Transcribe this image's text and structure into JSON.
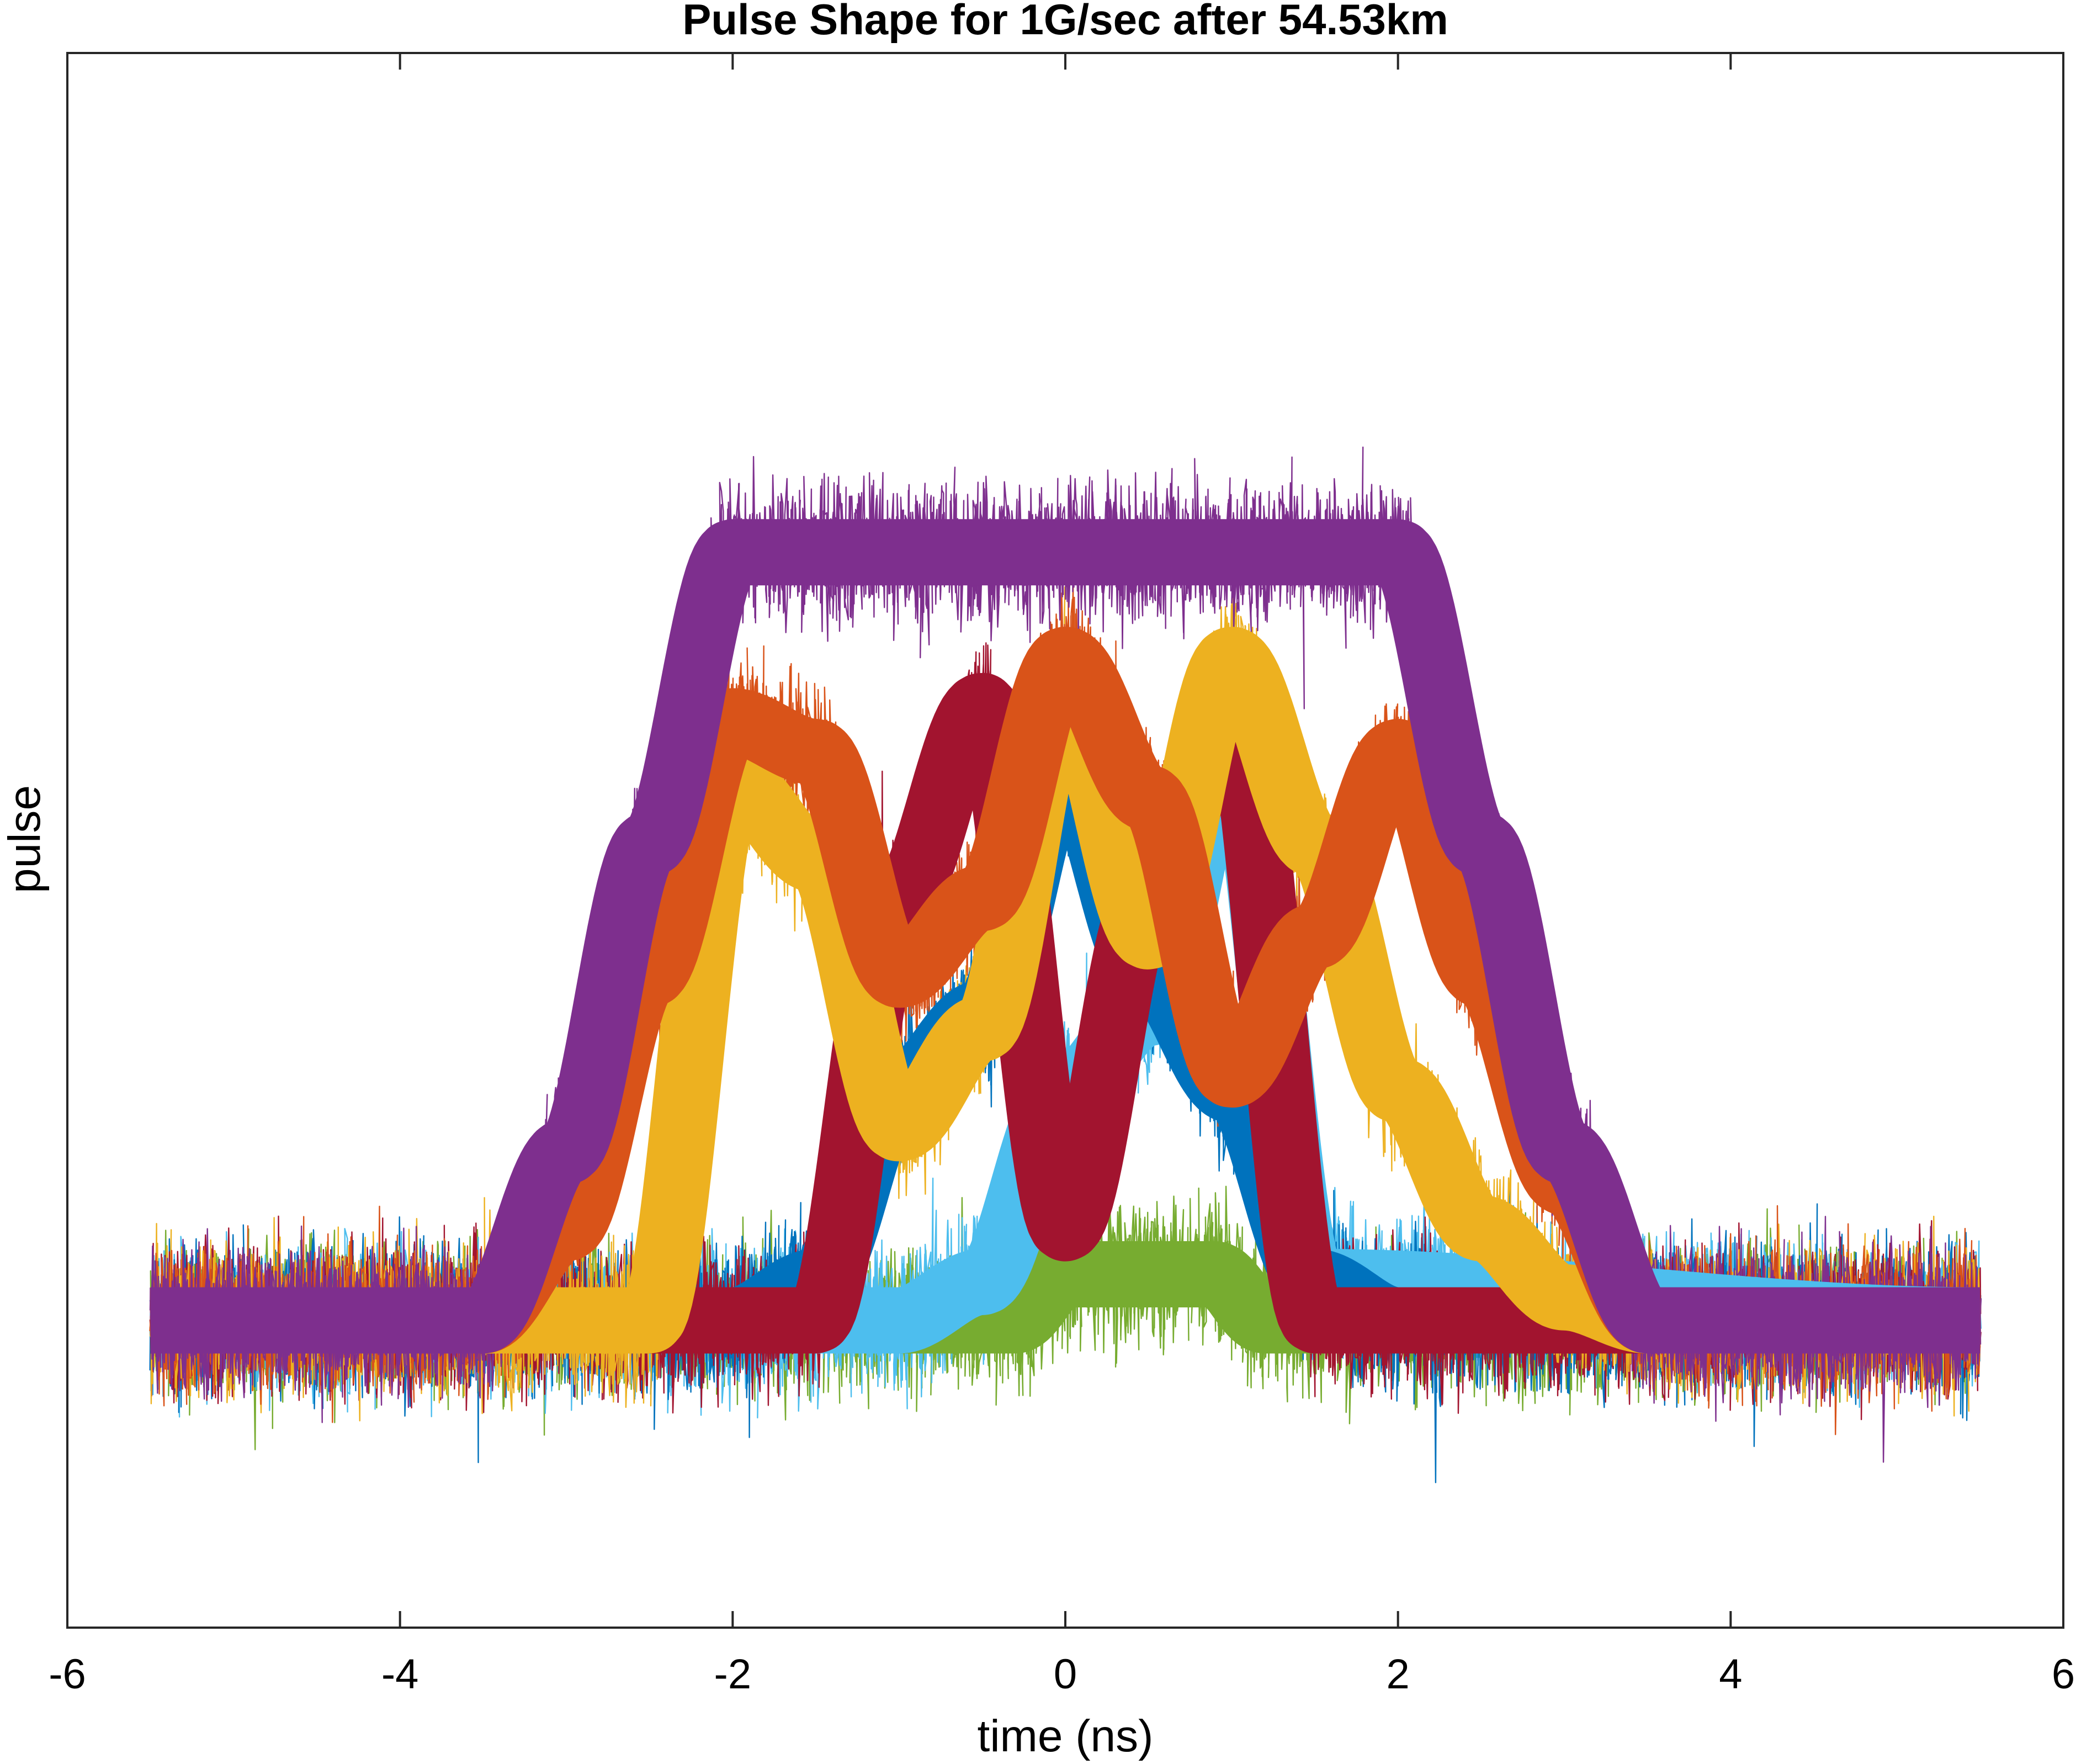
{
  "chart_data": {
    "type": "line",
    "title": "Pulse Shape for 1G/sec after 54.53km",
    "xlabel": "time (ns)",
    "ylabel": "pulse",
    "xlim": [
      -6,
      6
    ],
    "ylim": [
      -0.4,
      1.65
    ],
    "xticks": [
      -6,
      -4,
      -2,
      0,
      2,
      4,
      6
    ],
    "xtick_labels": [
      "-6",
      "-4",
      "-2",
      "0",
      "2",
      "4",
      "6"
    ],
    "yticks_shown": false,
    "grid": false,
    "legend": "none",
    "notes_visible": "noisy overlaid pulse traces (eye-pattern style), x sampled from -5.5 to 5.5 ns",
    "bit_period_ns": 1,
    "series": [
      {
        "color": "#7E2F8E",
        "x": [
          -5.5,
          -3.5,
          -3.0,
          -2.5,
          -2.0,
          2.0,
          2.5,
          3.0,
          3.5,
          5.5
        ],
        "y": [
          0.0,
          0.0,
          0.22,
          0.62,
          1.0,
          1.0,
          0.62,
          0.22,
          0.0,
          0.0
        ]
      },
      {
        "color": "#D95319",
        "x": [
          -5.5,
          -3.5,
          -3.0,
          -2.5,
          -2.0,
          -1.5,
          -1.0,
          -0.5,
          0.0,
          0.5,
          1.0,
          1.5,
          2.0,
          2.5,
          3.0,
          3.5,
          5.5
        ],
        "y": [
          0.0,
          0.0,
          0.12,
          0.45,
          0.78,
          0.74,
          0.45,
          0.55,
          0.86,
          0.68,
          0.32,
          0.5,
          0.74,
          0.45,
          0.18,
          0.0,
          0.0
        ]
      },
      {
        "color": "#EDB120",
        "x": [
          -5.5,
          -2.5,
          -2.0,
          -1.5,
          -1.0,
          -0.5,
          0.0,
          0.5,
          1.0,
          1.5,
          2.0,
          2.5,
          3.0,
          3.5,
          5.5
        ],
        "y": [
          0.0,
          0.0,
          0.7,
          0.6,
          0.25,
          0.38,
          0.82,
          0.5,
          0.86,
          0.62,
          0.3,
          0.12,
          0.03,
          0.0,
          0.0
        ]
      },
      {
        "color": "#A2142F",
        "x": [
          -5.5,
          -1.5,
          -1.0,
          -0.5,
          0.0,
          0.5,
          1.0,
          1.5,
          5.5
        ],
        "y": [
          0.0,
          0.0,
          0.55,
          0.8,
          0.12,
          0.55,
          0.8,
          0.0,
          0.0
        ]
      },
      {
        "color": "#0072BD",
        "x": [
          -5.5,
          -2.0,
          -1.5,
          -1.0,
          -0.5,
          0.0,
          0.5,
          1.0,
          1.5,
          2.0,
          5.5
        ],
        "y": [
          0.0,
          0.0,
          0.05,
          0.3,
          0.4,
          0.72,
          0.45,
          0.3,
          0.05,
          0.0,
          0.0
        ]
      },
      {
        "color": "#4DBEEE",
        "x": [
          -5.5,
          -1.0,
          -0.5,
          0.0,
          0.5,
          1.0,
          1.5,
          5.5
        ],
        "y": [
          0.0,
          0.0,
          0.05,
          0.3,
          0.4,
          0.76,
          0.05,
          0.0
        ]
      },
      {
        "color": "#77AC30",
        "x": [
          -5.5,
          -0.3,
          0.0,
          0.5,
          0.9,
          1.2,
          5.5
        ],
        "y": [
          0.0,
          0.0,
          0.06,
          0.06,
          0.06,
          0.0,
          0.0
        ]
      }
    ]
  }
}
